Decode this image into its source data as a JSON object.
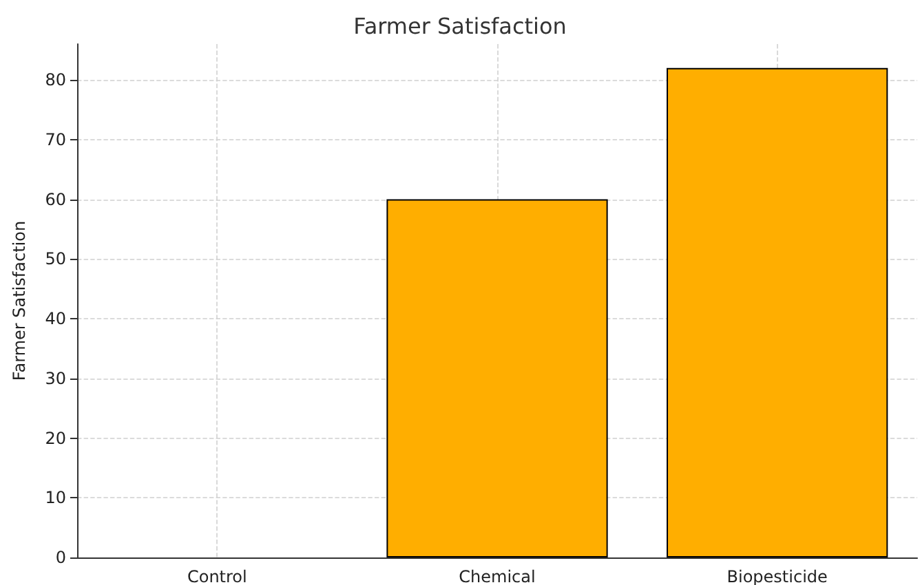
{
  "chart_data": {
    "type": "bar",
    "title": "Farmer Satisfaction",
    "ylabel": "Farmer Satisfaction",
    "categories": [
      "Control",
      "Chemical",
      "Biopesticide"
    ],
    "values": [
      0,
      60,
      82
    ],
    "color": "#ffae00",
    "ylim": [
      0,
      86
    ],
    "yticks": [
      0,
      10,
      20,
      30,
      40,
      50,
      60,
      70,
      80
    ],
    "grid": true
  }
}
